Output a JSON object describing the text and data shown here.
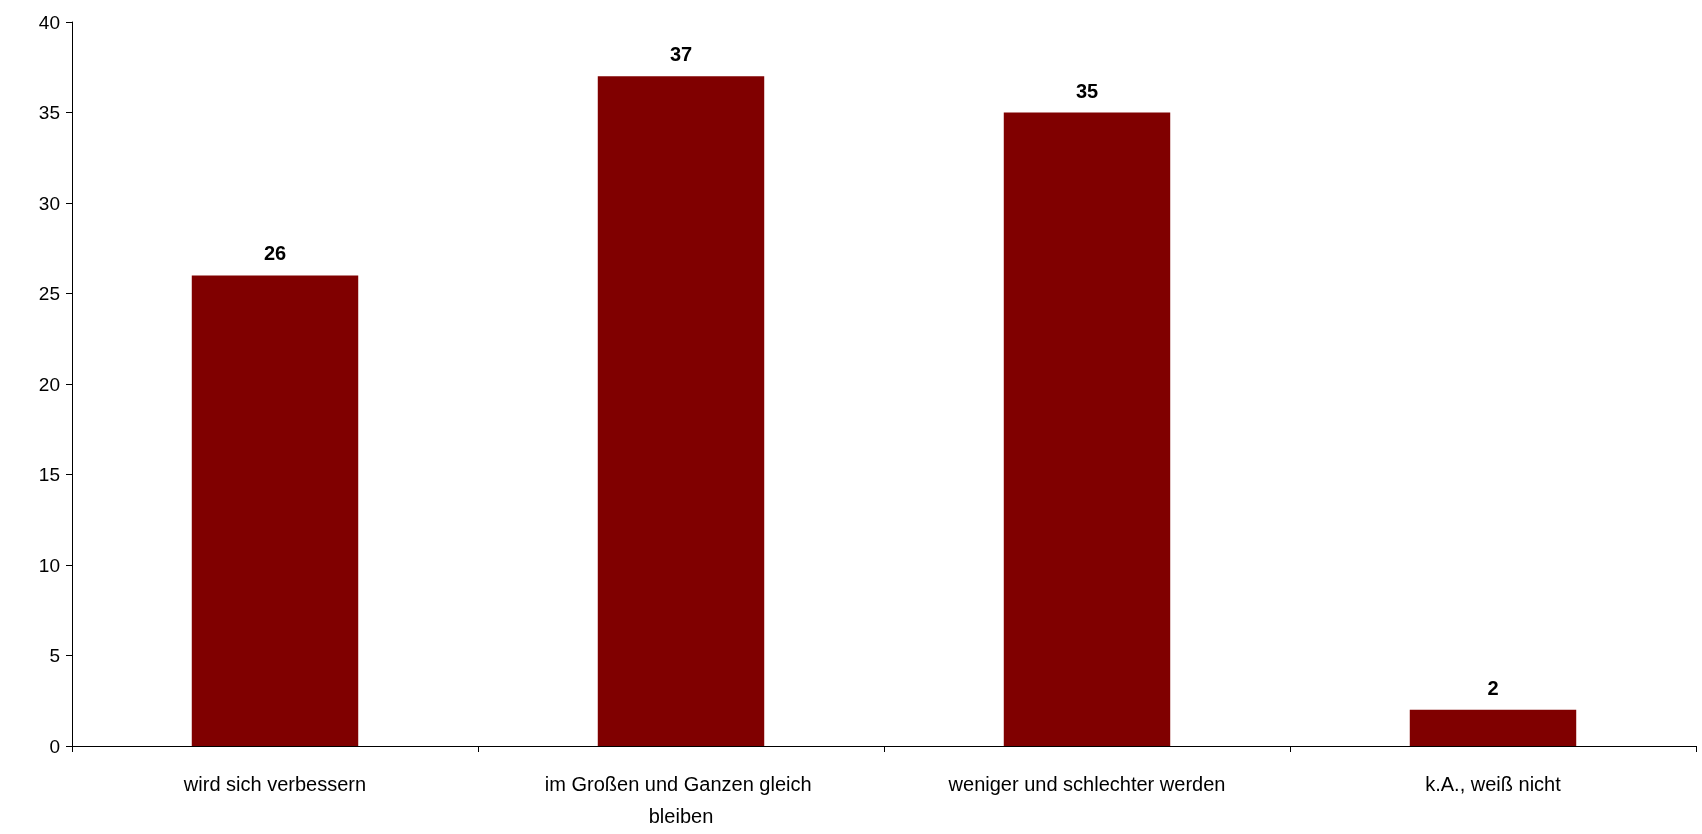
{
  "chart_data": {
    "type": "bar",
    "categories": [
      "wird sich verbessern",
      "im Großen und Ganzen gleich bleiben",
      "weniger und schlechter werden",
      "k.A., weiß nicht"
    ],
    "values": [
      26,
      37,
      35,
      2
    ],
    "color": "#800000",
    "ylim": [
      0,
      40
    ],
    "yticks": [
      0,
      5,
      10,
      15,
      20,
      25,
      30,
      35,
      40
    ],
    "grid": false,
    "data_labels": true
  }
}
